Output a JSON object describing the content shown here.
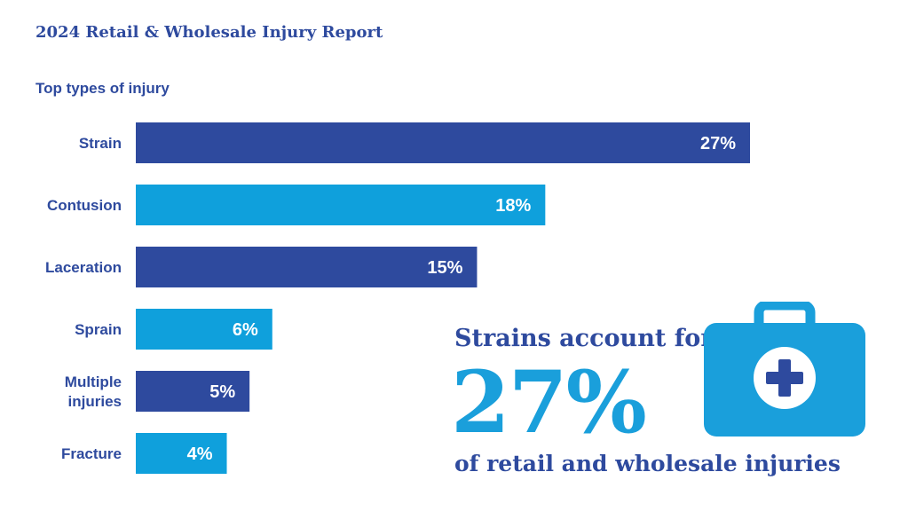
{
  "report_title": "2024 Retail & Wholesale Injury Report",
  "callout": {
    "lead": "Strains account for",
    "big": "27%",
    "tail": "of retail and wholesale injuries",
    "icon": "first-aid-kit-icon"
  },
  "colors": {
    "dark_blue": "#2e4a9e",
    "light_blue": "#0fa0dc",
    "white": "#ffffff"
  },
  "chart_data": {
    "type": "bar",
    "orientation": "horizontal",
    "title": "Top types of injury",
    "categories": [
      "Strain",
      "Contusion",
      "Laceration",
      "Sprain",
      "Multiple injuries",
      "Fracture"
    ],
    "category_lines": [
      [
        "Strain"
      ],
      [
        "Contusion"
      ],
      [
        "Laceration"
      ],
      [
        "Sprain"
      ],
      [
        "Multiple",
        "injuries"
      ],
      [
        "Fracture"
      ]
    ],
    "values": [
      27,
      18,
      15,
      6,
      5,
      4
    ],
    "value_labels": [
      "27%",
      "18%",
      "15%",
      "6%",
      "5%",
      "4%"
    ],
    "bar_colors": [
      "#2e4a9e",
      "#0fa0dc",
      "#2e4a9e",
      "#0fa0dc",
      "#2e4a9e",
      "#0fa0dc"
    ],
    "unit": "%",
    "grid": false,
    "legend": "none"
  }
}
